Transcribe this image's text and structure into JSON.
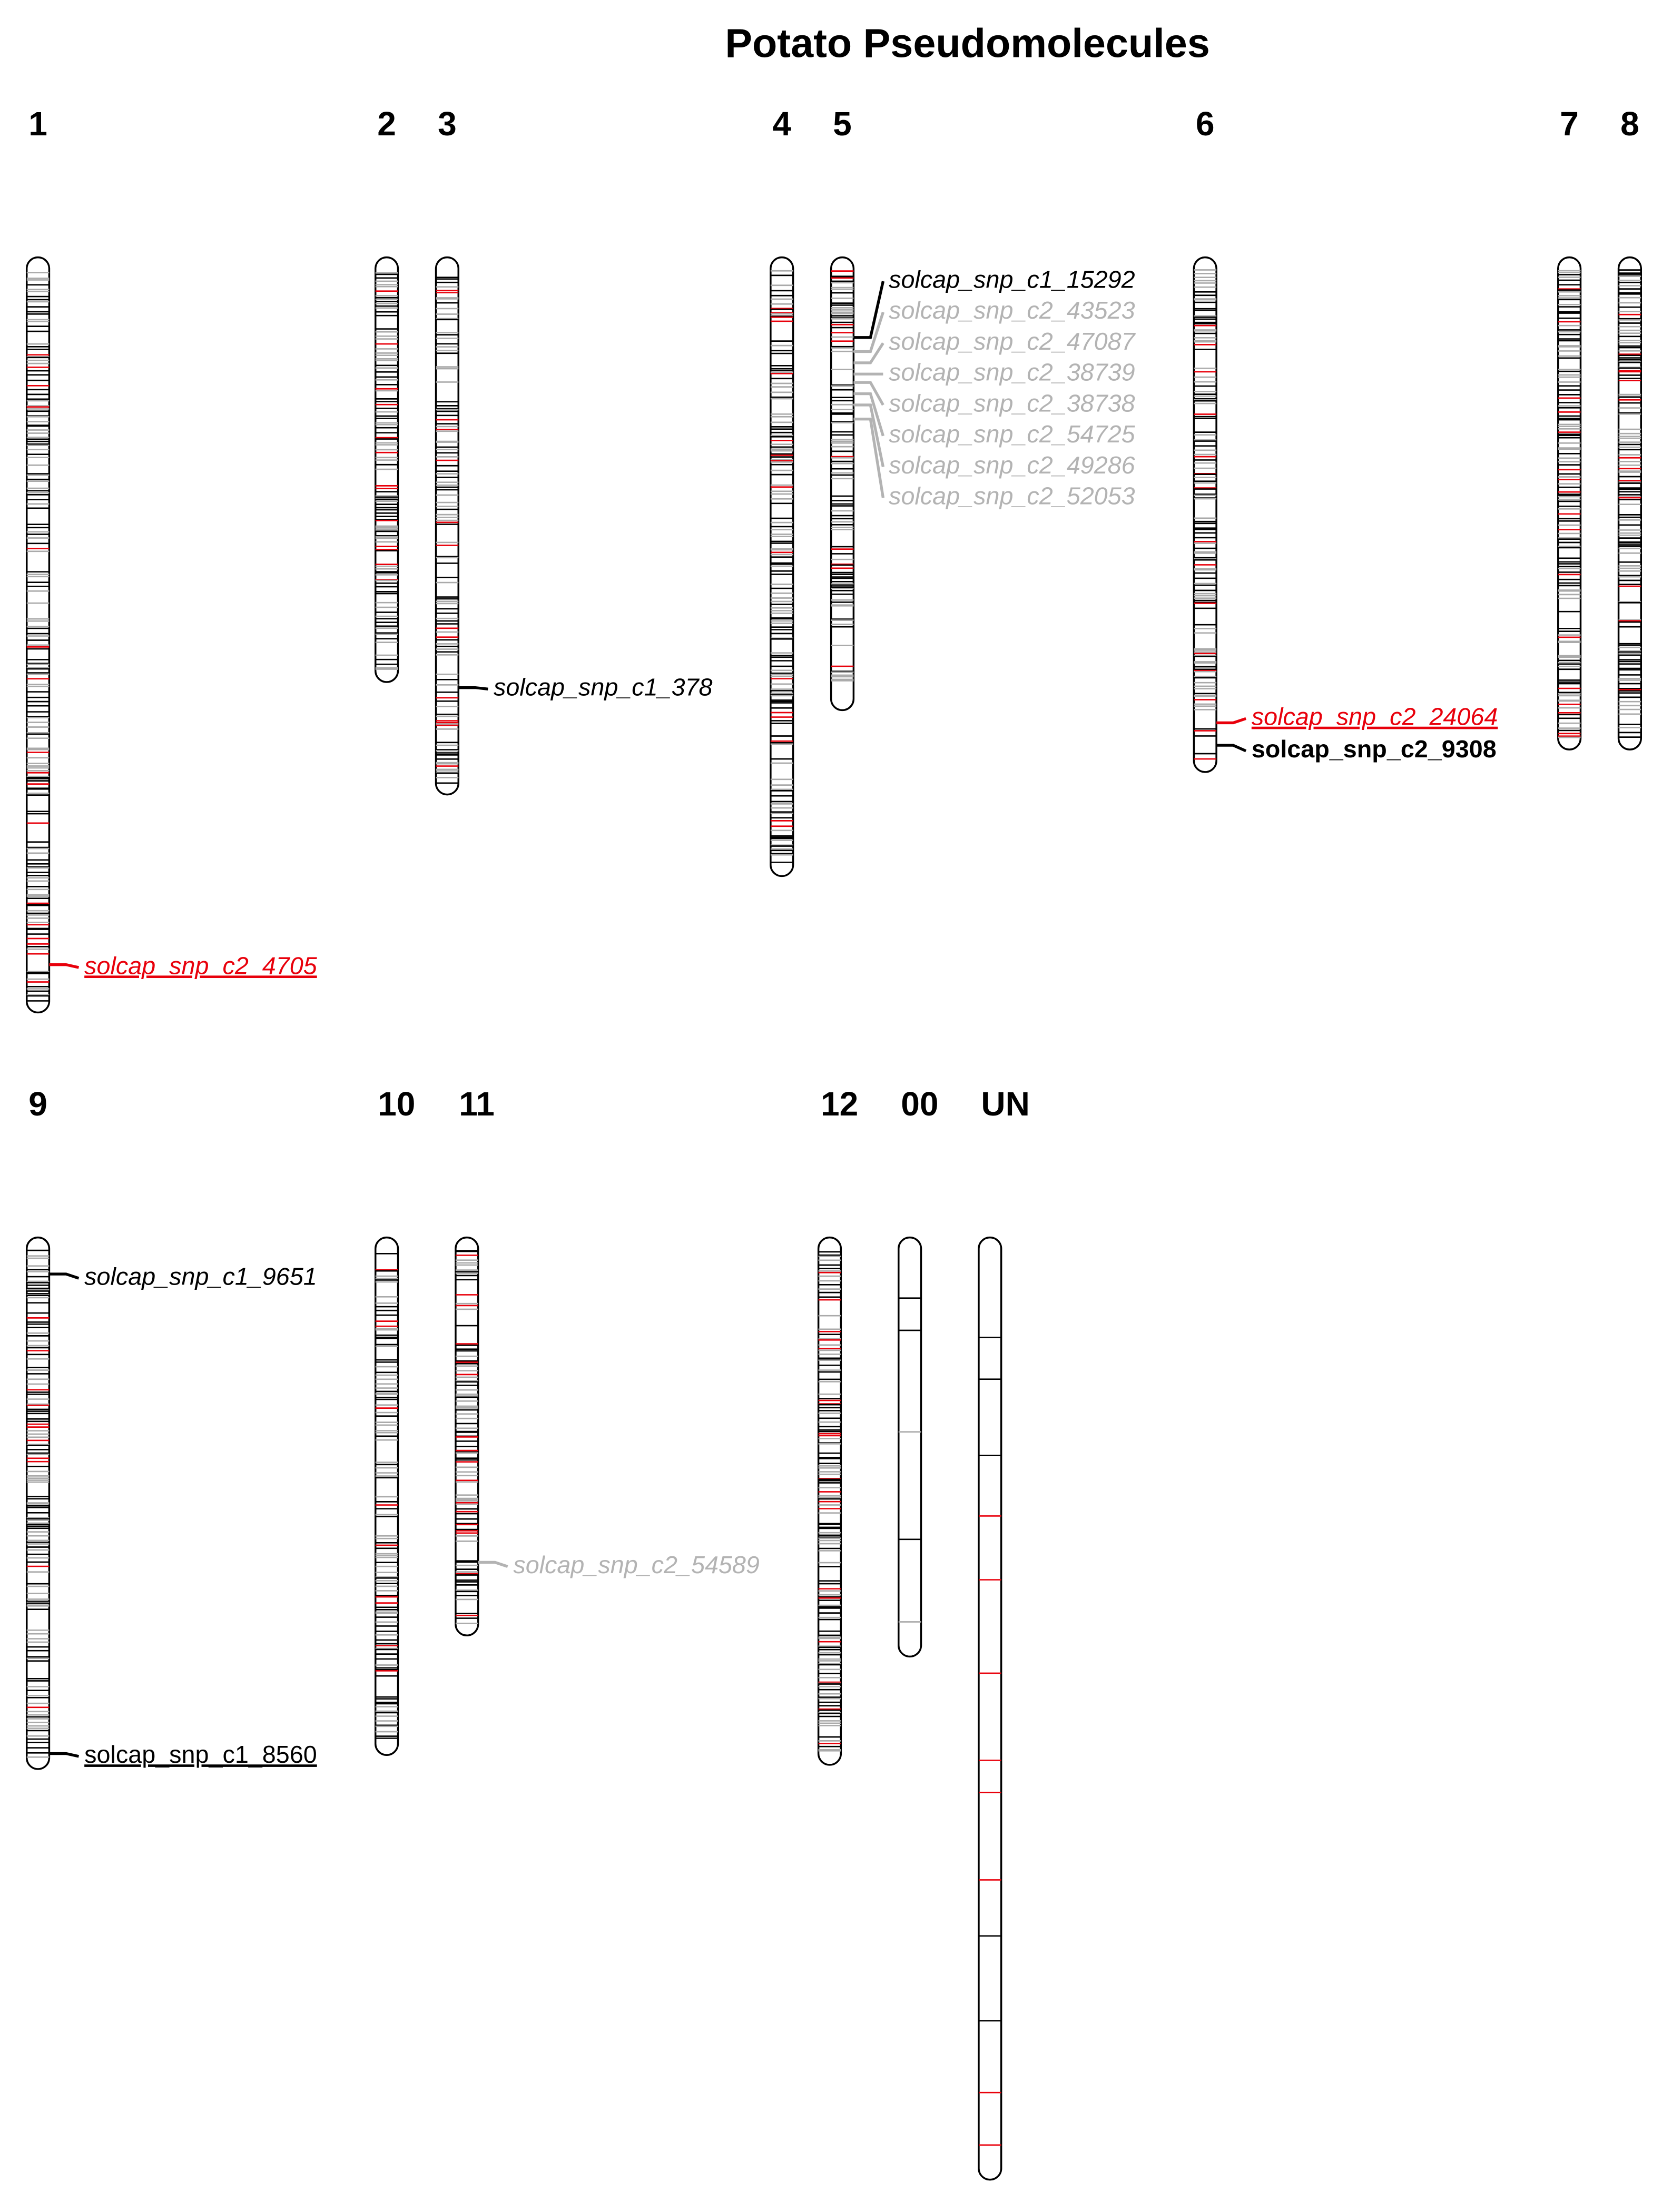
{
  "header": {
    "title": "Potato Pseudomolecules"
  },
  "chromosomes": [
    {
      "label": "1",
      "markers": [
        {
          "name": "solcap_snp_c2_4705"
        }
      ]
    },
    {
      "label": "2",
      "markers": []
    },
    {
      "label": "3",
      "markers": [
        {
          "name": "solcap_snp_c1_378"
        }
      ]
    },
    {
      "label": "4",
      "markers": []
    },
    {
      "label": "5",
      "markers": [
        {
          "name": "solcap_snp_c1_15292"
        },
        {
          "name": "solcap_snp_c2_43523"
        },
        {
          "name": "solcap_snp_c2_47087"
        },
        {
          "name": "solcap_snp_c2_38739"
        },
        {
          "name": "solcap_snp_c2_38738"
        },
        {
          "name": "solcap_snp_c2_54725"
        },
        {
          "name": "solcap_snp_c2_49286"
        },
        {
          "name": "solcap_snp_c2_52053"
        }
      ]
    },
    {
      "label": "6",
      "markers": [
        {
          "name": "solcap_snp_c2_24064"
        },
        {
          "name": "solcap_snp_c2_9308"
        }
      ]
    },
    {
      "label": "7",
      "markers": []
    },
    {
      "label": "8",
      "markers": []
    },
    {
      "label": "9",
      "markers": [
        {
          "name": "solcap_snp_c1_9651"
        },
        {
          "name": "solcap_snp_c1_8560"
        }
      ]
    },
    {
      "label": "10",
      "markers": []
    },
    {
      "label": "11",
      "markers": [
        {
          "name": "solcap_snp_c2_54589"
        }
      ]
    },
    {
      "label": "12",
      "markers": []
    },
    {
      "label": "00",
      "markers": []
    },
    {
      "label": "UN",
      "markers": []
    }
  ]
}
